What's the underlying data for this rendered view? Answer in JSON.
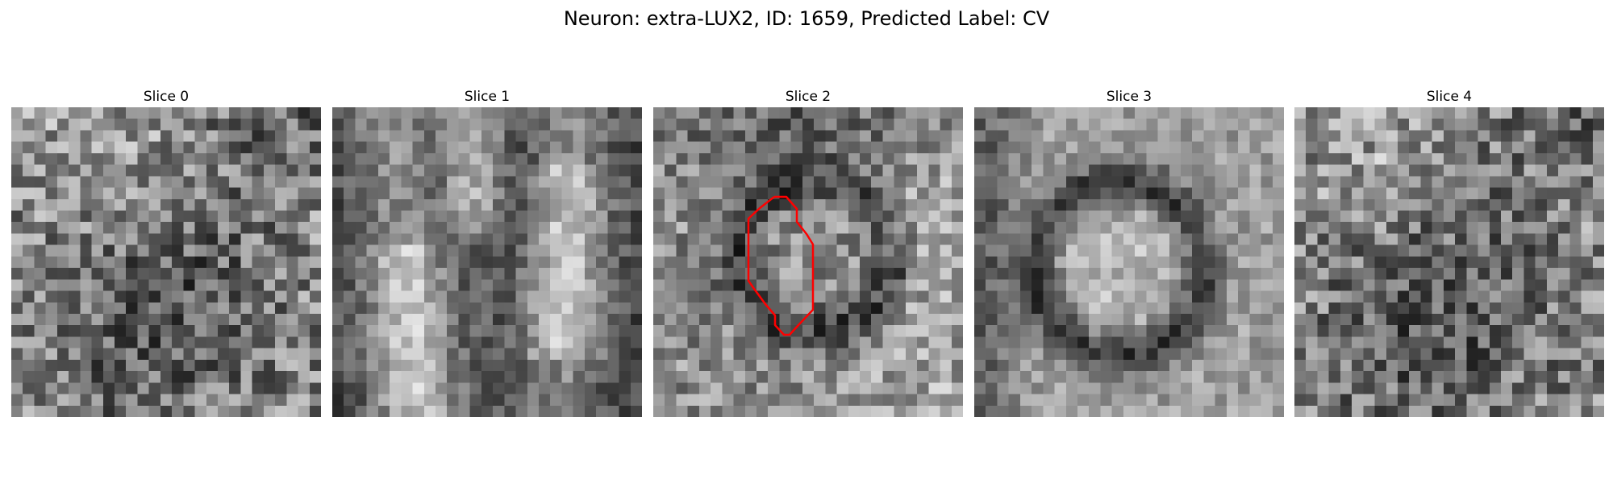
{
  "figure_title": "Neuron: extra-LUX2, ID: 1659, Predicted Label: CV",
  "slices": [
    {
      "title": "Slice 0",
      "pattern": "noise-texture",
      "has_outline": false
    },
    {
      "title": "Slice 1",
      "pattern": "vertical-bright-bands",
      "has_outline": false
    },
    {
      "title": "Slice 2",
      "pattern": "dark-ring-cell",
      "has_outline": true
    },
    {
      "title": "Slice 3",
      "pattern": "large-ring-cell",
      "has_outline": false
    },
    {
      "title": "Slice 4",
      "pattern": "noise-texture",
      "has_outline": false
    }
  ],
  "grid_size": 27,
  "outline_color": "#ff0000"
}
